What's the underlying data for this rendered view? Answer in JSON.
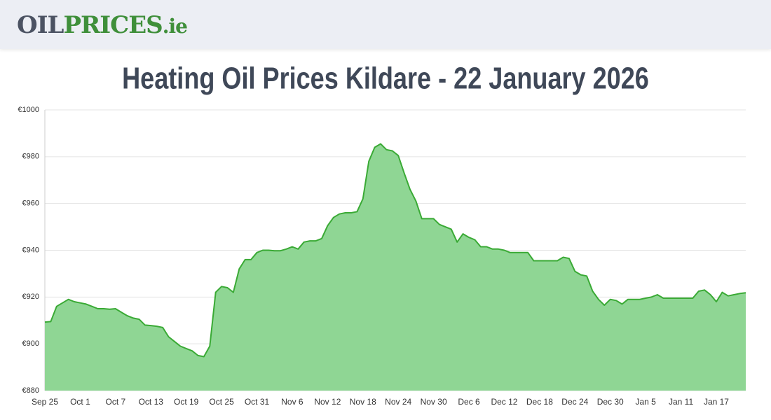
{
  "header": {
    "logo_main": "OIL",
    "logo_accent": "PRICES",
    "logo_suffix": ".ie"
  },
  "chart_data": {
    "type": "area",
    "title": "Heating Oil Prices Kildare - 22 January 2026",
    "categories": [
      "Sep 25",
      null,
      null,
      null,
      null,
      null,
      "Oct 1",
      null,
      null,
      null,
      null,
      null,
      "Oct 7",
      null,
      null,
      null,
      null,
      null,
      "Oct 13",
      null,
      null,
      null,
      null,
      null,
      "Oct 19",
      null,
      null,
      null,
      null,
      null,
      "Oct 25",
      null,
      null,
      null,
      null,
      null,
      "Oct 31",
      null,
      null,
      null,
      null,
      null,
      "Nov 6",
      null,
      null,
      null,
      null,
      null,
      "Nov 12",
      null,
      null,
      null,
      null,
      null,
      "Nov 18",
      null,
      null,
      null,
      null,
      null,
      "Nov 24",
      null,
      null,
      null,
      null,
      null,
      "Nov 30",
      null,
      null,
      null,
      null,
      null,
      "Dec 6",
      null,
      null,
      null,
      null,
      null,
      "Dec 12",
      null,
      null,
      null,
      null,
      null,
      "Dec 18",
      null,
      null,
      null,
      null,
      null,
      "Dec 24",
      null,
      null,
      null,
      null,
      null,
      "Dec 30",
      null,
      null,
      null,
      null,
      null,
      "Jan 5",
      null,
      null,
      null,
      null,
      null,
      "Jan 11",
      null,
      null,
      null,
      null,
      null,
      "Jan 17",
      null,
      null,
      null,
      null,
      null
    ],
    "values": [
      909.3,
      909.5,
      916,
      917.5,
      919,
      918,
      917.5,
      917,
      916,
      915,
      915,
      914.8,
      915,
      913.5,
      912,
      911,
      910.5,
      908,
      907.8,
      907.5,
      907,
      903,
      901,
      899,
      898,
      897,
      895,
      894.5,
      899,
      922,
      924.5,
      924,
      922,
      932,
      936,
      936,
      939,
      940,
      940,
      939.8,
      939.8,
      940.5,
      941.5,
      940.5,
      943.5,
      944,
      944,
      945,
      950.5,
      954,
      955.5,
      956,
      956,
      956.5,
      962,
      978,
      984,
      985.5,
      983,
      982.5,
      980.5,
      973,
      966,
      961,
      953.5,
      953.5,
      953.5,
      951,
      950,
      949,
      943.5,
      947,
      945.5,
      944.5,
      941.5,
      941.5,
      940.5,
      940.5,
      940,
      939,
      939,
      939,
      939,
      935.5,
      935.5,
      935.5,
      935.5,
      935.5,
      937,
      936.5,
      931,
      929.5,
      929,
      922.5,
      919,
      916.5,
      919,
      918.5,
      917,
      919,
      919,
      919,
      919.5,
      920,
      921,
      919.5,
      919.5,
      919.5,
      919.5,
      919.5,
      919.5,
      922.5,
      923,
      921,
      918,
      922,
      920.5,
      921,
      921.5,
      921.8
    ],
    "color": "#3aaa35",
    "fill": "#8fd694",
    "ylim": [
      880,
      1000
    ],
    "yticks": [
      {
        "value": 880,
        "label": "€880"
      },
      {
        "value": 900,
        "label": "€900"
      },
      {
        "value": 920,
        "label": "€920"
      },
      {
        "value": 940,
        "label": "€940"
      },
      {
        "value": 960,
        "label": "€960"
      },
      {
        "value": 980,
        "label": "€980"
      },
      {
        "value": 1000,
        "label": "€1000"
      }
    ],
    "grid": true
  }
}
